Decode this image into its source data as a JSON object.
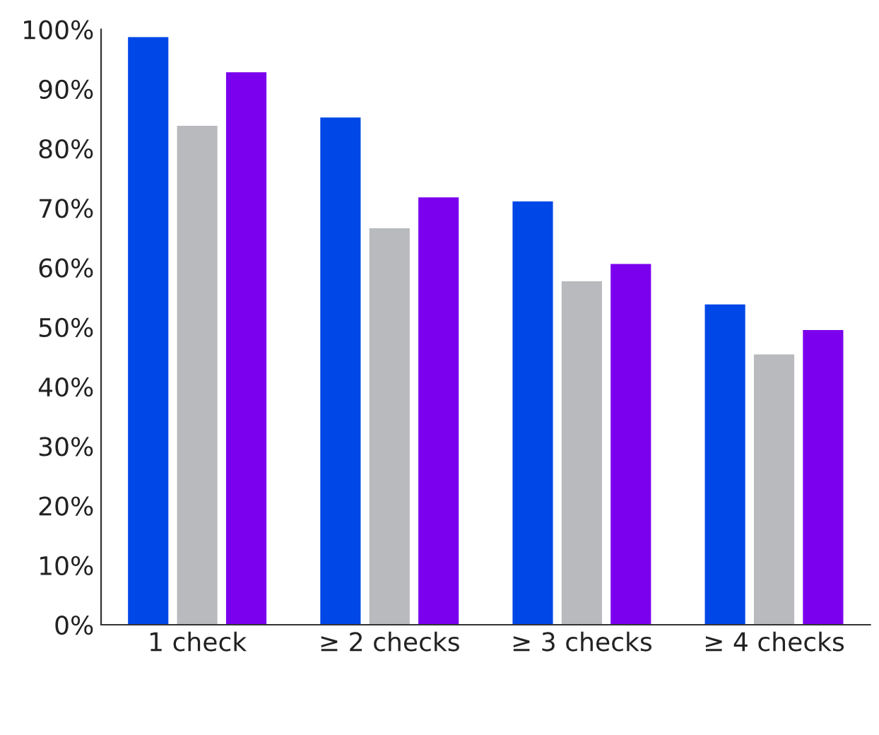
{
  "chart_data": {
    "type": "bar",
    "categories": [
      "1 check",
      "≥ 2 checks",
      "≥ 3 checks",
      "≥ 4 checks"
    ],
    "series": [
      {
        "color": "#0047e8",
        "values": [
          98.7,
          85.2,
          71.1,
          53.8
        ]
      },
      {
        "color": "#b8babd",
        "values": [
          83.8,
          66.6,
          57.7,
          45.4
        ]
      },
      {
        "color": "#7b00ee",
        "values": [
          92.8,
          71.8,
          60.6,
          49.5
        ]
      }
    ],
    "ylim": [
      0,
      100
    ],
    "yticks": [
      {
        "value": 0,
        "label": "0%"
      },
      {
        "value": 10,
        "label": "10%"
      },
      {
        "value": 20,
        "label": "20%"
      },
      {
        "value": 30,
        "label": "30%"
      },
      {
        "value": 40,
        "label": "40%"
      },
      {
        "value": 50,
        "label": "50%"
      },
      {
        "value": 60,
        "label": "60%"
      },
      {
        "value": 70,
        "label": "70%"
      },
      {
        "value": 80,
        "label": "80%"
      },
      {
        "value": 90,
        "label": "90%"
      },
      {
        "value": 100,
        "label": "100%"
      }
    ],
    "grid": false
  }
}
